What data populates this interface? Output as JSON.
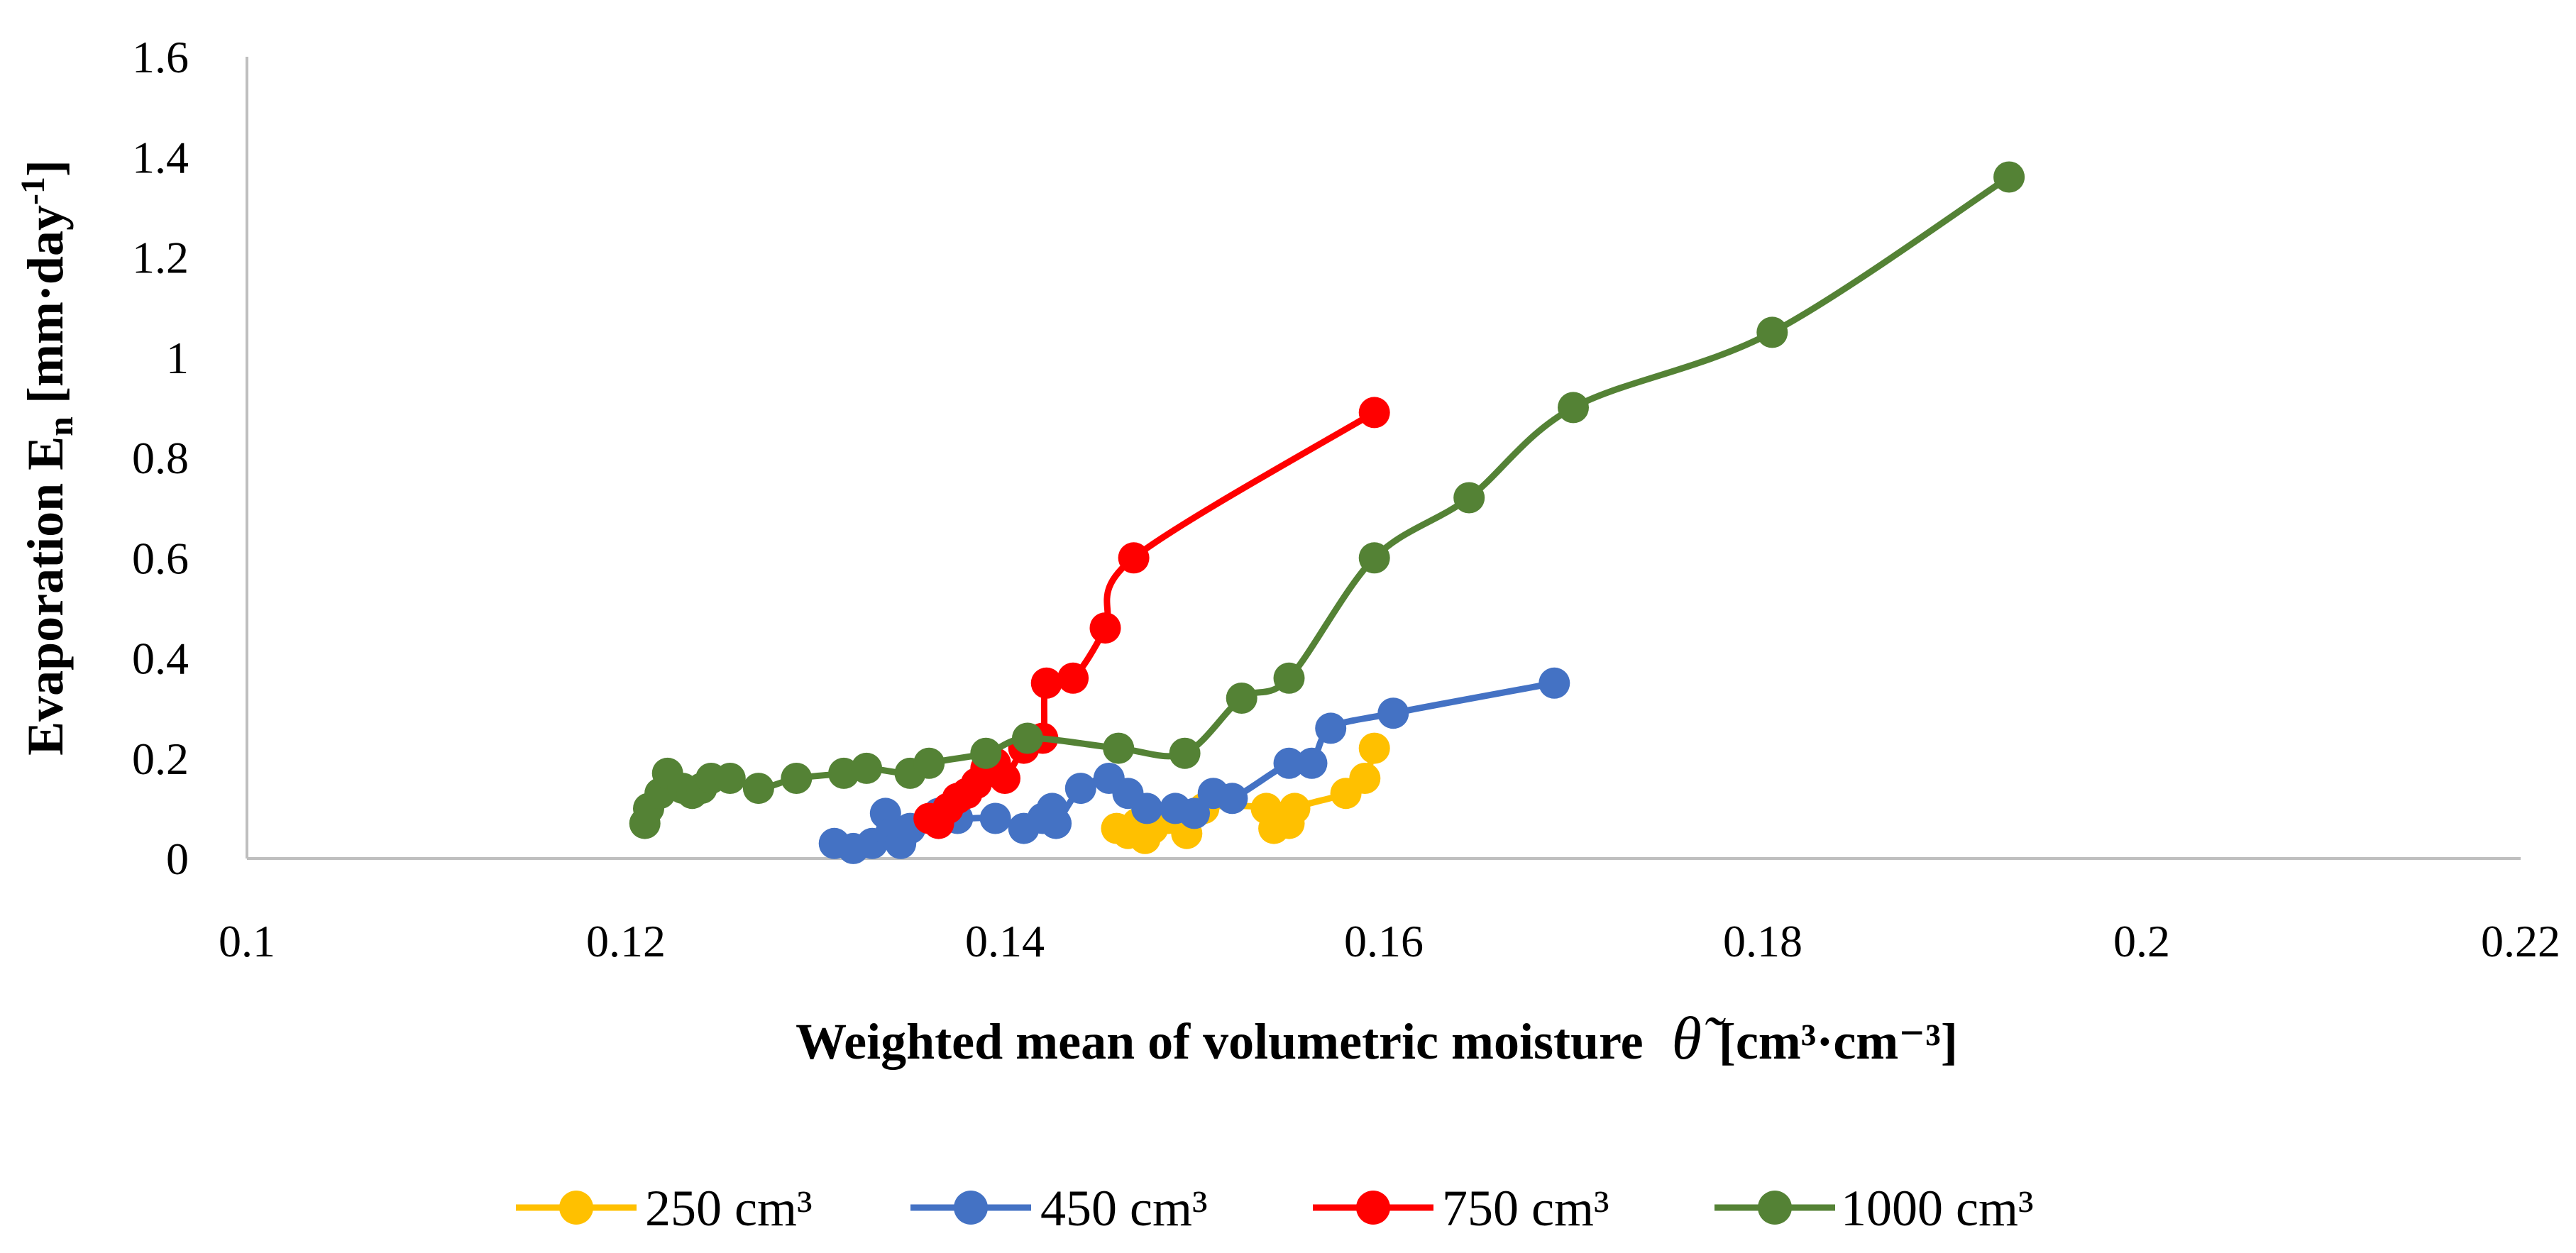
{
  "chart_data": {
    "type": "scatter",
    "title": "",
    "xlabel": "Weighted mean of volumetric moisture",
    "xlabel_symbol": "θ̃",
    "xlabel_units": "[cm³·cm⁻³]",
    "ylabel": "Evaporation E",
    "ylabel_subscript": "n",
    "ylabel_units": "[mm·day",
    "ylabel_units_sup": "-1",
    "ylabel_units_close": "]",
    "xlim": [
      0.1,
      0.22
    ],
    "ylim": [
      0,
      1.6
    ],
    "xticks": [
      "0.1",
      "0.12",
      "0.14",
      "0.16",
      "0.18",
      "0.2",
      "0.22"
    ],
    "yticks": [
      "0",
      "0.2",
      "0.4",
      "0.6",
      "0.8",
      "1",
      "1.2",
      "1.4",
      "1.6"
    ],
    "grid": false,
    "legend_position": "bottom",
    "series": [
      {
        "name": "250 cm³",
        "color": "#FFC000",
        "points": [
          [
            0.1459,
            0.06
          ],
          [
            0.1465,
            0.05
          ],
          [
            0.147,
            0.07
          ],
          [
            0.1474,
            0.04
          ],
          [
            0.1478,
            0.06
          ],
          [
            0.1486,
            0.08
          ],
          [
            0.1496,
            0.05
          ],
          [
            0.1505,
            0.1
          ],
          [
            0.1538,
            0.1
          ],
          [
            0.1542,
            0.06
          ],
          [
            0.1547,
            0.08
          ],
          [
            0.155,
            0.07
          ],
          [
            0.1553,
            0.1
          ],
          [
            0.158,
            0.13
          ],
          [
            0.159,
            0.16
          ],
          [
            0.1595,
            0.22
          ]
        ]
      },
      {
        "name": "450 cm³",
        "color": "#4472C4",
        "points": [
          [
            0.131,
            0.03
          ],
          [
            0.132,
            0.02
          ],
          [
            0.133,
            0.03
          ],
          [
            0.1337,
            0.09
          ],
          [
            0.134,
            0.05
          ],
          [
            0.1345,
            0.03
          ],
          [
            0.135,
            0.06
          ],
          [
            0.1365,
            0.09
          ],
          [
            0.1375,
            0.08
          ],
          [
            0.1395,
            0.08
          ],
          [
            0.141,
            0.06
          ],
          [
            0.142,
            0.08
          ],
          [
            0.1425,
            0.1
          ],
          [
            0.1427,
            0.07
          ],
          [
            0.144,
            0.14
          ],
          [
            0.1455,
            0.16
          ],
          [
            0.1465,
            0.13
          ],
          [
            0.1475,
            0.1
          ],
          [
            0.149,
            0.1
          ],
          [
            0.15,
            0.09
          ],
          [
            0.151,
            0.13
          ],
          [
            0.152,
            0.12
          ],
          [
            0.155,
            0.19
          ],
          [
            0.1562,
            0.19
          ],
          [
            0.1572,
            0.26
          ],
          [
            0.1605,
            0.29
          ],
          [
            0.169,
            0.35
          ]
        ]
      },
      {
        "name": "750 cm³",
        "color": "#FF0000",
        "points": [
          [
            0.136,
            0.08
          ],
          [
            0.1365,
            0.07
          ],
          [
            0.137,
            0.1
          ],
          [
            0.1375,
            0.12
          ],
          [
            0.138,
            0.13
          ],
          [
            0.1385,
            0.15
          ],
          [
            0.139,
            0.18
          ],
          [
            0.1395,
            0.19
          ],
          [
            0.14,
            0.16
          ],
          [
            0.141,
            0.22
          ],
          [
            0.142,
            0.24
          ],
          [
            0.1422,
            0.35
          ],
          [
            0.1436,
            0.36
          ],
          [
            0.1453,
            0.46
          ],
          [
            0.1468,
            0.6
          ],
          [
            0.1595,
            0.89
          ]
        ]
      },
      {
        "name": "1000 cm³",
        "color": "#548235",
        "points": [
          [
            0.121,
            0.07
          ],
          [
            0.1212,
            0.1
          ],
          [
            0.1218,
            0.13
          ],
          [
            0.1222,
            0.17
          ],
          [
            0.123,
            0.14
          ],
          [
            0.1235,
            0.13
          ],
          [
            0.124,
            0.14
          ],
          [
            0.1245,
            0.16
          ],
          [
            0.1255,
            0.16
          ],
          [
            0.127,
            0.14
          ],
          [
            0.129,
            0.16
          ],
          [
            0.1315,
            0.17
          ],
          [
            0.1327,
            0.18
          ],
          [
            0.135,
            0.17
          ],
          [
            0.136,
            0.19
          ],
          [
            0.139,
            0.21
          ],
          [
            0.1412,
            0.24
          ],
          [
            0.146,
            0.22
          ],
          [
            0.1495,
            0.21
          ],
          [
            0.1525,
            0.32
          ],
          [
            0.155,
            0.36
          ],
          [
            0.1595,
            0.6
          ],
          [
            0.1645,
            0.72
          ],
          [
            0.17,
            0.9
          ],
          [
            0.1805,
            1.05
          ],
          [
            0.193,
            1.36
          ]
        ]
      }
    ]
  }
}
